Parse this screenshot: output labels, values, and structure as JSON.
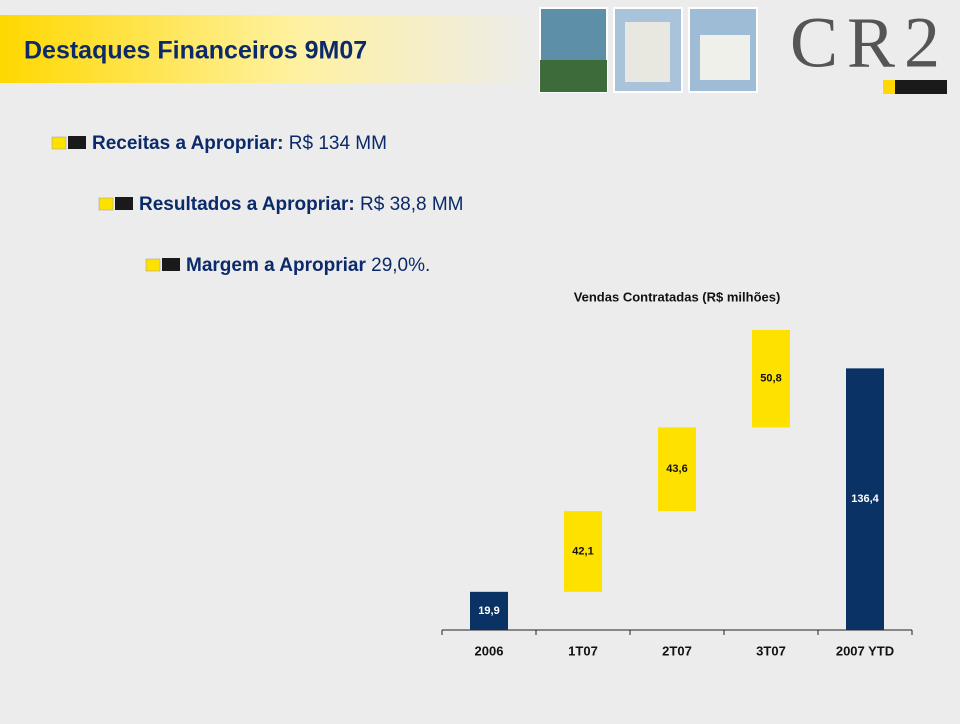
{
  "header": {
    "title": "Destaques Financeiros 9M07",
    "logo": "CR2"
  },
  "bullets": [
    {
      "label": "Receitas a Apropriar:",
      "value": "R$ 134 MM"
    },
    {
      "label": "Resultados a Apropriar:",
      "value": "R$ 38,8 MM"
    },
    {
      "label": "Margem a Apropriar",
      "value": "29,0%."
    }
  ],
  "chart_data": {
    "type": "waterfall",
    "title": "Vendas Contratadas (R$ milhões)",
    "categories": [
      "2006",
      "1T07",
      "2T07",
      "3T07",
      "2007 YTD"
    ],
    "values": [
      19.9,
      42.1,
      43.6,
      50.8,
      136.4
    ],
    "value_labels": [
      "19,9",
      "42,1",
      "43,6",
      "50,8",
      "136,4"
    ],
    "totals": [
      true,
      false,
      false,
      false,
      true
    ],
    "colors": [
      "#0b3264",
      "#ffe100",
      "#ffe100",
      "#ffe100",
      "#0b3264"
    ]
  }
}
